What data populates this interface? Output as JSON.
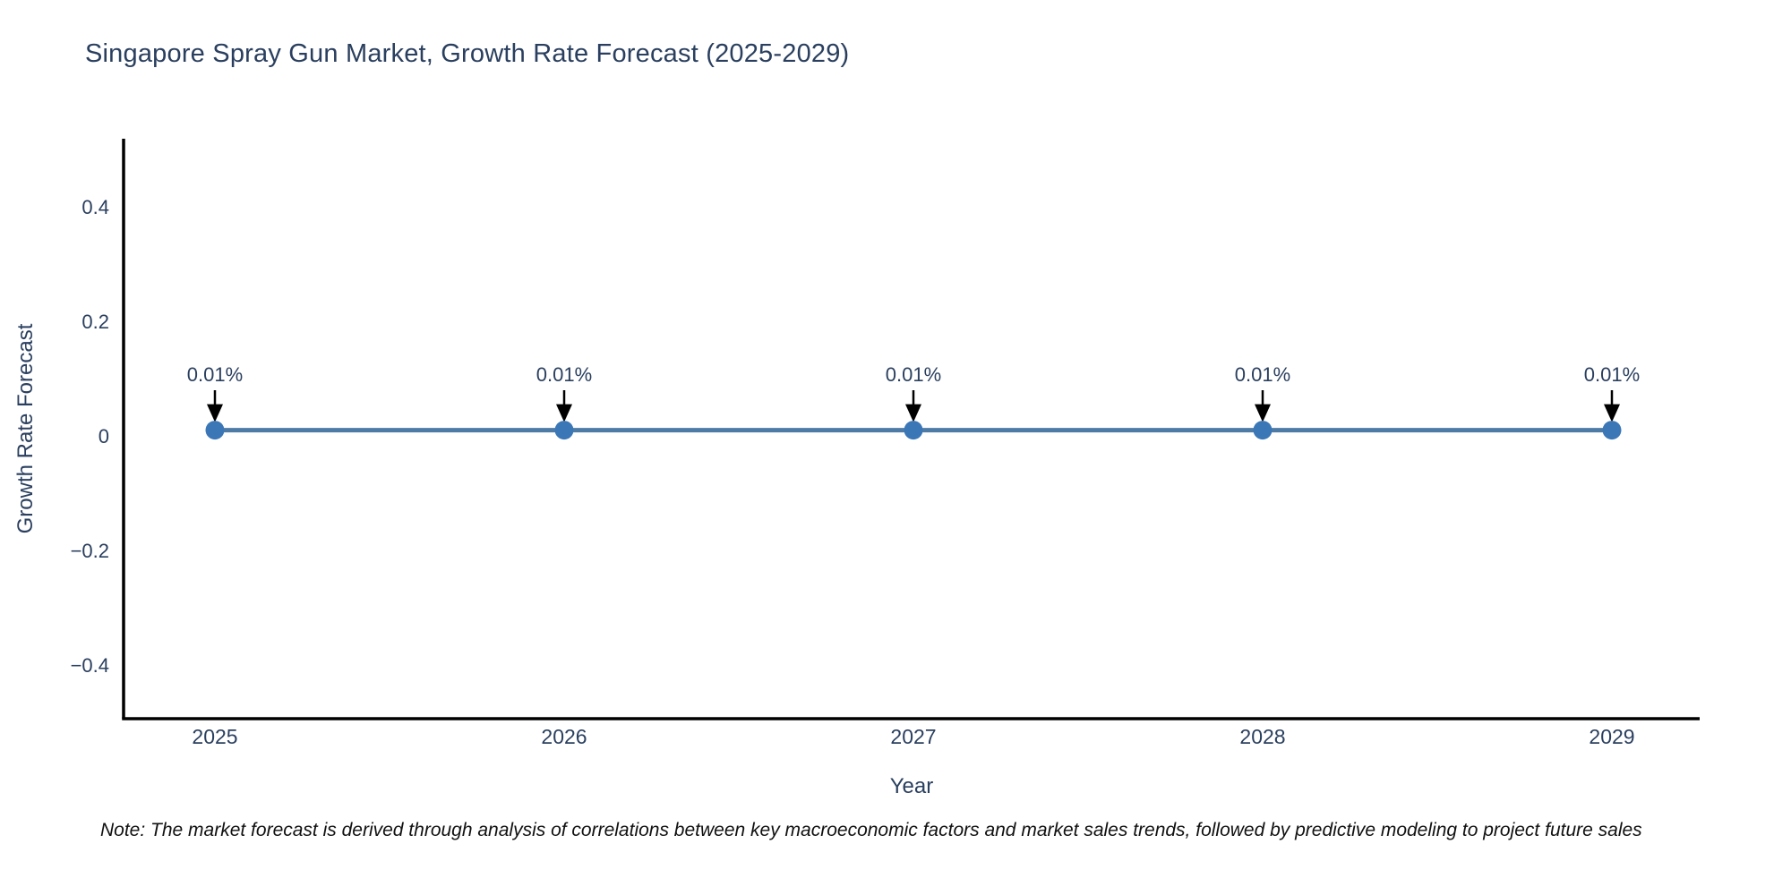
{
  "chart_data": {
    "type": "line",
    "title": "Singapore Spray Gun Market, Growth Rate Forecast (2025-2029)",
    "xlabel": "Year",
    "ylabel": "Growth Rate Forecast",
    "categories": [
      "2025",
      "2026",
      "2027",
      "2028",
      "2029"
    ],
    "series": [
      {
        "name": "Growth Rate Forecast",
        "values": [
          0.01,
          0.01,
          0.01,
          0.01,
          0.01
        ]
      }
    ],
    "point_labels": [
      "0.01%",
      "0.01%",
      "0.01%",
      "0.01%",
      "0.01%"
    ],
    "yticks": [
      0.4,
      0.2,
      0,
      -0.2,
      -0.4
    ],
    "ytick_labels": [
      "0.4",
      "0.2",
      "0",
      "−0.2",
      "−0.4"
    ],
    "ylim": [
      -0.49,
      0.52
    ],
    "grid": false,
    "legend": false,
    "colors": {
      "line": "#4e7ba6",
      "marker": "#3b77b7",
      "axis": "#000000",
      "text": "#2a3f5f",
      "annotation_text": "#2a3f5f",
      "annotation_arrow": "#000000",
      "note_text": "#111111"
    }
  },
  "footnote": "Note: The market forecast is derived through analysis of correlations between key macroeconomic factors and market sales trends, followed by predictive modeling to project future sales"
}
